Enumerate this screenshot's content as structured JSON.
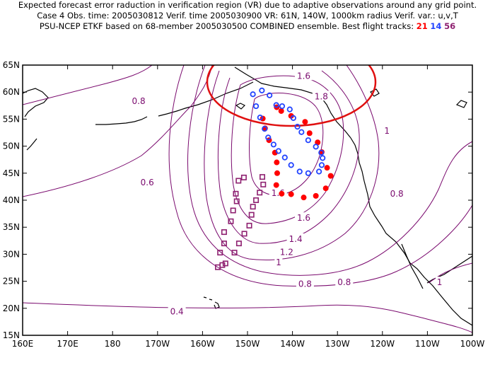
{
  "header": {
    "line1": "Expected forecast error raduction in verification region (VR) due to adaptive observations around any grid point.",
    "line2": "Case 4   Obs. time: 2005030812   Verif. time 2005030900   VR: 61N, 140W, 1000km radius   Verif. var.: u,v,T",
    "line3_prefix": "PSU-NCEP ETKF based on 68-member 2005030500 COMBINED ensemble.  Best flight tracks:",
    "track_a": "21",
    "track_b": "14",
    "track_c": "56"
  },
  "axes": {
    "lat_labels": [
      "65N",
      "60N",
      "55N",
      "50N",
      "45N",
      "40N",
      "35N",
      "30N",
      "25N",
      "20N",
      "15N"
    ],
    "lon_labels": [
      "160E",
      "170E",
      "180",
      "170W",
      "160W",
      "150W",
      "140W",
      "130W",
      "120W",
      "110W",
      "100W"
    ]
  },
  "contour_labels": [
    {
      "text": "0.8",
      "lon": -174.2,
      "lat": 58.3
    },
    {
      "text": "0.6",
      "lon": -172.3,
      "lat": 43.3
    },
    {
      "text": "0.4",
      "lon": -165.7,
      "lat": 19.4
    },
    {
      "text": "1.6",
      "lon": -137.5,
      "lat": 63.0
    },
    {
      "text": "1.8",
      "lon": -133.6,
      "lat": 59.2
    },
    {
      "text": "1",
      "lon": -119.0,
      "lat": 52.8
    },
    {
      "text": "0.8",
      "lon": -116.8,
      "lat": 41.2
    },
    {
      "text": "1.6",
      "lon": -143.2,
      "lat": 41.3
    },
    {
      "text": "1.6",
      "lon": -137.5,
      "lat": 36.7
    },
    {
      "text": "1.4",
      "lon": -139.3,
      "lat": 32.8
    },
    {
      "text": "1.2",
      "lon": -141.3,
      "lat": 30.4
    },
    {
      "text": "1",
      "lon": -143.1,
      "lat": 28.5
    },
    {
      "text": "0.8",
      "lon": -137.2,
      "lat": 24.5
    },
    {
      "text": "0.8",
      "lon": -128.5,
      "lat": 24.8
    },
    {
      "text": "1",
      "lon": -107.3,
      "lat": 24.8
    }
  ],
  "flight_tracks": {
    "red_filled": [
      [
        -142.5,
        56.5
      ],
      [
        -140.3,
        55.6
      ],
      [
        -137.2,
        54.5
      ],
      [
        -136.2,
        52.4
      ],
      [
        -134.4,
        50.7
      ],
      [
        -133.5,
        48.9
      ],
      [
        -132.3,
        46.0
      ],
      [
        -131.5,
        44.5
      ],
      [
        -132.6,
        42.2
      ],
      [
        -134.8,
        40.8
      ],
      [
        -137.5,
        40.5
      ],
      [
        -140.3,
        41.1
      ],
      [
        -142.4,
        41.2
      ],
      [
        -143.6,
        42.8
      ],
      [
        -143.4,
        45.0
      ],
      [
        -143.5,
        47.0
      ],
      [
        -143.9,
        48.8
      ],
      [
        -145.2,
        51.1
      ],
      [
        -146.1,
        53.3
      ],
      [
        -146.6,
        55.1
      ],
      [
        -143.5,
        57.2
      ]
    ],
    "blue_open": [
      [
        -148.8,
        59.6
      ],
      [
        -146.8,
        60.3
      ],
      [
        -145.1,
        59.4
      ],
      [
        -143.6,
        57.6
      ],
      [
        -142.3,
        57.4
      ],
      [
        -140.6,
        56.8
      ],
      [
        -139.8,
        55.2
      ],
      [
        -138.9,
        53.6
      ],
      [
        -138.0,
        52.6
      ],
      [
        -136.5,
        51.1
      ],
      [
        -134.8,
        49.9
      ],
      [
        -133.6,
        48.8
      ],
      [
        -133.3,
        47.8
      ],
      [
        -133.5,
        46.5
      ],
      [
        -134.1,
        45.3
      ],
      [
        -136.5,
        45.0
      ],
      [
        -138.4,
        45.3
      ],
      [
        -140.3,
        46.5
      ],
      [
        -141.7,
        47.9
      ],
      [
        -143.1,
        49.1
      ],
      [
        -144.2,
        50.3
      ],
      [
        -145.4,
        51.6
      ],
      [
        -146.2,
        53.2
      ],
      [
        -147.2,
        55.3
      ],
      [
        -148.1,
        57.4
      ]
    ],
    "purple_square": [
      [
        -150.8,
        44.2
      ],
      [
        -152.0,
        43.6
      ],
      [
        -152.6,
        41.2
      ],
      [
        -152.4,
        39.8
      ],
      [
        -153.2,
        38.1
      ],
      [
        -153.7,
        36.1
      ],
      [
        -155.2,
        34.1
      ],
      [
        -155.2,
        32.0
      ],
      [
        -156.1,
        30.3
      ],
      [
        -155.6,
        28.0
      ],
      [
        -156.6,
        27.6
      ],
      [
        -154.9,
        28.3
      ],
      [
        -152.9,
        30.3
      ],
      [
        -151.9,
        32.0
      ],
      [
        -150.7,
        33.8
      ],
      [
        -149.6,
        35.3
      ],
      [
        -149.1,
        37.3
      ],
      [
        -148.8,
        38.8
      ],
      [
        -148.1,
        40.0
      ],
      [
        -147.3,
        41.4
      ],
      [
        -146.5,
        42.9
      ],
      [
        -146.7,
        44.3
      ]
    ]
  },
  "colors": {
    "contour": "#7a0a6e",
    "verification_circle": "#e01010",
    "track_a": "#ff0000",
    "track_b": "#2244ff",
    "track_c": "#8e2070",
    "coast": "#000000"
  }
}
